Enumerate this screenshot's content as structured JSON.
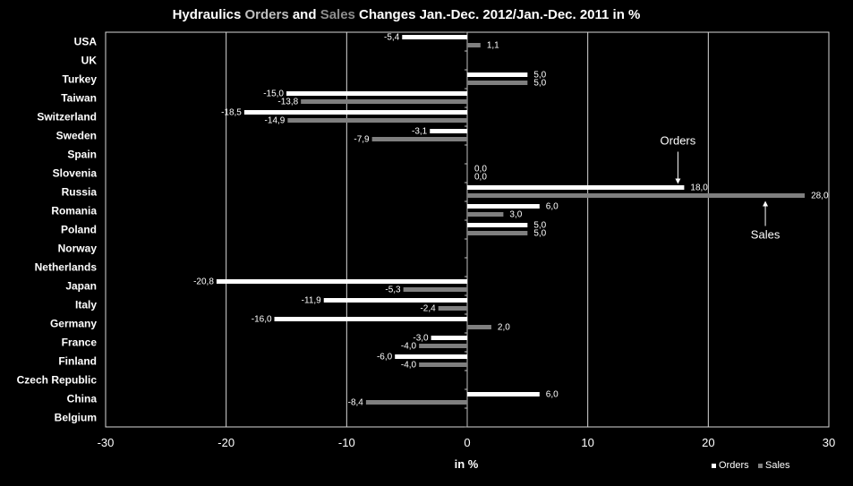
{
  "chart_data": {
    "type": "bar",
    "orientation": "horizontal",
    "title": "Hydraulics Orders and Sales Changes Jan.-Dec. 2012/Jan.-Dec. 2011 in %",
    "title_parts": {
      "p1": "Hydraulics ",
      "p2": "Orders",
      "p3": " and ",
      "p4": "Sales",
      "p5": " Changes Jan.-Dec. 2012/Jan.-Dec. 2011 in %"
    },
    "xlabel": "in %",
    "ylabel": "",
    "xlim": [
      -30,
      30
    ],
    "xticks": [
      -30,
      -20,
      -10,
      0,
      10,
      20,
      30
    ],
    "grid": true,
    "legend_position": "bottom-right",
    "categories": [
      "USA",
      "UK",
      "Turkey",
      "Taiwan",
      "Switzerland",
      "Sweden",
      "Spain",
      "Slovenia",
      "Russia",
      "Romania",
      "Poland",
      "Norway",
      "Netherlands",
      "Japan",
      "Italy",
      "Germany",
      "France",
      "Finland",
      "Czech Republic",
      "China",
      "Belgium"
    ],
    "series": [
      {
        "name": "Orders",
        "color": "#ffffff",
        "values": [
          -5.4,
          null,
          5.0,
          -15.0,
          -18.5,
          -3.1,
          null,
          0.0,
          18.0,
          6.0,
          5.0,
          null,
          null,
          -20.8,
          -11.9,
          -16.0,
          -3.0,
          -6.0,
          null,
          6.0,
          null
        ],
        "labels": [
          "-5,4",
          "",
          "5,0",
          "-15,0",
          "-18,5",
          "-3,1",
          "",
          "0,0",
          "18,0",
          "6,0",
          "5,0",
          "",
          "",
          "-20,8",
          "-11,9",
          "-16,0",
          "-3,0",
          "-6,0",
          "",
          "6,0",
          ""
        ]
      },
      {
        "name": "Sales",
        "color": "#7f7f7f",
        "values": [
          1.1,
          null,
          5.0,
          -13.8,
          -14.9,
          -7.9,
          null,
          0.0,
          28.0,
          3.0,
          5.0,
          null,
          null,
          -5.3,
          -2.4,
          2.0,
          -4.0,
          -4.0,
          null,
          -8.4,
          null
        ],
        "labels": [
          "1,1",
          "",
          "5,0",
          "-13,8",
          "-14,9",
          "-7,9",
          "",
          "0,0",
          "28,0",
          "3,0",
          "5,0",
          "",
          "",
          "-5,3",
          "-2,4",
          "2,0",
          "-4,0",
          "-4,0",
          "",
          "-8,4",
          ""
        ]
      }
    ],
    "annotations": [
      {
        "text": "Orders",
        "series": "Orders",
        "category": "Russia"
      },
      {
        "text": "Sales",
        "series": "Sales",
        "category": "Russia"
      }
    ]
  }
}
